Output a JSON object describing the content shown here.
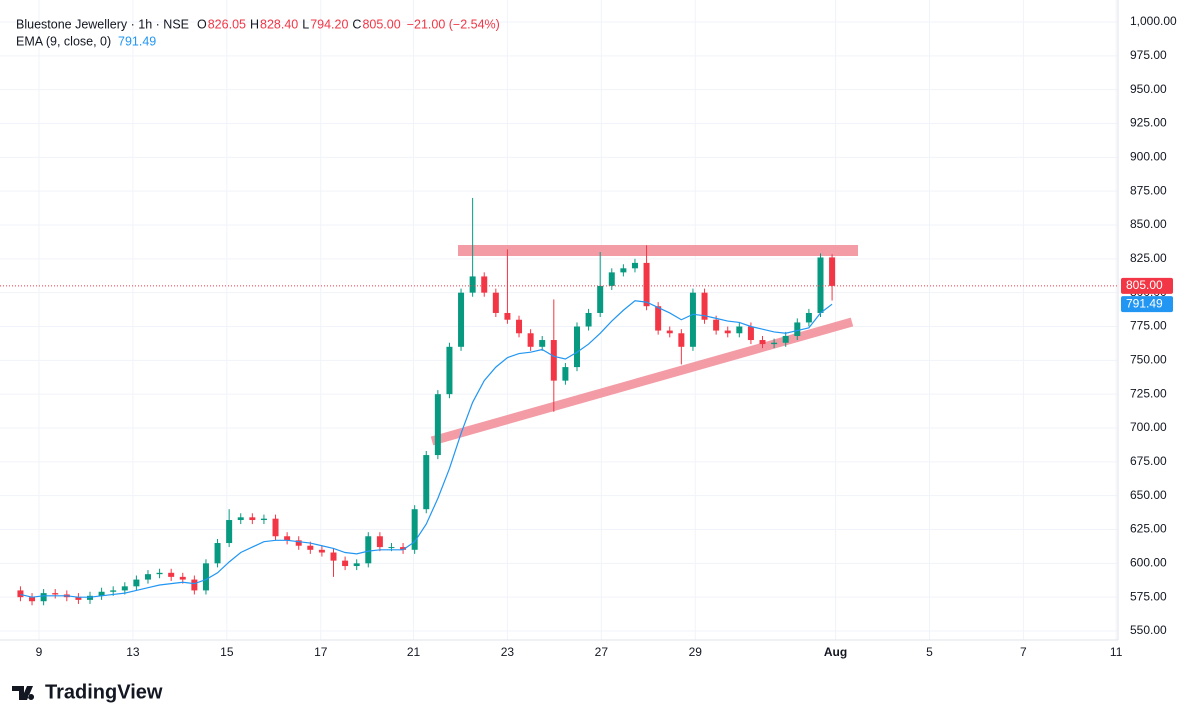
{
  "chart_data": {
    "type": "candlestick",
    "title": "Bluestone Jewellery · 1h · NSE",
    "ohlc_legend": {
      "o_label": "O",
      "open": "826.05",
      "h_label": "H",
      "high": "828.40",
      "l_label": "L",
      "low": "794.20",
      "c_label": "C",
      "close": "805.00",
      "change": "−21.00 (−2.54%)"
    },
    "indicator": {
      "name": "EMA (9, close, 0)",
      "value": "791.49"
    },
    "up_color": "#089981",
    "down_color": "#f23645",
    "open": [
      580,
      575,
      572,
      578,
      577,
      575,
      573,
      576,
      579,
      580,
      583,
      588,
      592,
      593,
      590,
      588,
      580,
      600,
      615,
      632,
      634,
      632,
      633,
      620,
      617,
      613,
      610,
      608,
      602,
      598,
      600,
      620,
      612,
      612,
      610,
      640,
      680,
      725,
      760,
      800,
      812,
      800,
      785,
      780,
      770,
      760,
      765,
      735,
      745,
      775,
      785,
      805,
      815,
      818,
      822,
      790,
      772,
      770,
      760,
      800,
      780,
      772,
      770,
      775,
      765,
      762,
      763,
      768,
      778,
      785,
      826.05
    ],
    "high": [
      583,
      578,
      581,
      581,
      580,
      578,
      579,
      582,
      583,
      586,
      591,
      595,
      596,
      596,
      593,
      591,
      603,
      618,
      640,
      637,
      637,
      636,
      636,
      623,
      620,
      616,
      613,
      611,
      605,
      603,
      623,
      623,
      615,
      615,
      643,
      683,
      728,
      763,
      803,
      870,
      815,
      803,
      832,
      783,
      773,
      768,
      795,
      748,
      778,
      788,
      830,
      818,
      821,
      825,
      835,
      793,
      775,
      773,
      803,
      803,
      783,
      775,
      778,
      778,
      768,
      766,
      771,
      781,
      788,
      829,
      828.4
    ],
    "low": [
      572,
      569,
      569,
      574,
      572,
      570,
      570,
      573,
      576,
      577,
      580,
      585,
      589,
      587,
      585,
      577,
      577,
      597,
      612,
      629,
      629,
      629,
      617,
      614,
      610,
      607,
      605,
      590,
      595,
      595,
      597,
      609,
      609,
      607,
      607,
      637,
      677,
      722,
      757,
      797,
      797,
      782,
      777,
      767,
      757,
      757,
      712,
      732,
      742,
      772,
      782,
      802,
      812,
      815,
      787,
      769,
      767,
      747,
      757,
      777,
      769,
      767,
      767,
      762,
      759,
      759,
      760,
      765,
      775,
      782,
      794.2
    ],
    "close": [
      575,
      572,
      578,
      577,
      575,
      573,
      576,
      579,
      580,
      583,
      588,
      592,
      593,
      590,
      588,
      580,
      600,
      615,
      632,
      634,
      632,
      633,
      620,
      617,
      613,
      610,
      608,
      602,
      598,
      600,
      620,
      612,
      612,
      610,
      640,
      680,
      725,
      760,
      800,
      812,
      800,
      785,
      780,
      770,
      760,
      765,
      735,
      745,
      775,
      785,
      805,
      815,
      818,
      822,
      790,
      772,
      770,
      760,
      800,
      780,
      772,
      770,
      775,
      765,
      762,
      763,
      768,
      778,
      785,
      826,
      805
    ],
    "series": [
      {
        "name": "EMA (9, close, 0)",
        "color": "#2196f3",
        "values": [
          577,
          575,
          576,
          576,
          576,
          575,
          575,
          576,
          577,
          578,
          580,
          582,
          584,
          585,
          586,
          585,
          588,
          593,
          601,
          608,
          612,
          616,
          617,
          617,
          616,
          615,
          613,
          611,
          608,
          607,
          609,
          610,
          610,
          610,
          616,
          629,
          648,
          670,
          696,
          719,
          735,
          745,
          752,
          755,
          756,
          758,
          753,
          751,
          756,
          762,
          770,
          779,
          787,
          794,
          793,
          789,
          785,
          780,
          784,
          783,
          781,
          779,
          778,
          775,
          773,
          771,
          770,
          772,
          774,
          785,
          791.49
        ]
      }
    ],
    "price_labels": [
      {
        "value": 805,
        "label": "805.00",
        "color": "#f23645"
      },
      {
        "value": 791.49,
        "label": "791.49",
        "color": "#2196f3"
      }
    ],
    "xlim": [
      -0.9,
      94.4
    ],
    "xticks": [
      {
        "value": 1.6,
        "label": "9"
      },
      {
        "value": 9.7,
        "label": "13"
      },
      {
        "value": 17.8,
        "label": "15"
      },
      {
        "value": 25.9,
        "label": "17"
      },
      {
        "value": 33.9,
        "label": "21"
      },
      {
        "value": 42,
        "label": "23"
      },
      {
        "value": 50.1,
        "label": "27"
      },
      {
        "value": 58.2,
        "label": "29"
      },
      {
        "value": 70.3,
        "label": "Aug"
      },
      {
        "value": 78.4,
        "label": "5"
      },
      {
        "value": 86.5,
        "label": "7"
      },
      {
        "value": 94.5,
        "label": "11"
      }
    ],
    "ylim": [
      550,
      1000
    ],
    "yticks": [
      {
        "value": 550,
        "label": "550.00"
      },
      {
        "value": 575,
        "label": "575.00"
      },
      {
        "value": 600,
        "label": "600.00"
      },
      {
        "value": 625,
        "label": "625.00"
      },
      {
        "value": 650,
        "label": "650.00"
      },
      {
        "value": 675,
        "label": "675.00"
      },
      {
        "value": 700,
        "label": "700.00"
      },
      {
        "value": 725,
        "label": "725.00"
      },
      {
        "value": 750,
        "label": "750.00"
      },
      {
        "value": 775,
        "label": "775.00"
      },
      {
        "value": 800,
        "label": "800.00"
      },
      {
        "value": 825,
        "label": "825.00"
      },
      {
        "value": 850,
        "label": "850.00"
      },
      {
        "value": 875,
        "label": "875.00"
      },
      {
        "value": 900,
        "label": "900.00"
      },
      {
        "value": 925,
        "label": "925.00"
      },
      {
        "value": 950,
        "label": "950.00"
      },
      {
        "value": 975,
        "label": "975.00"
      },
      {
        "value": 1000,
        "label": "1,000.00"
      }
    ],
    "grid": true,
    "brand": "TradingView"
  }
}
